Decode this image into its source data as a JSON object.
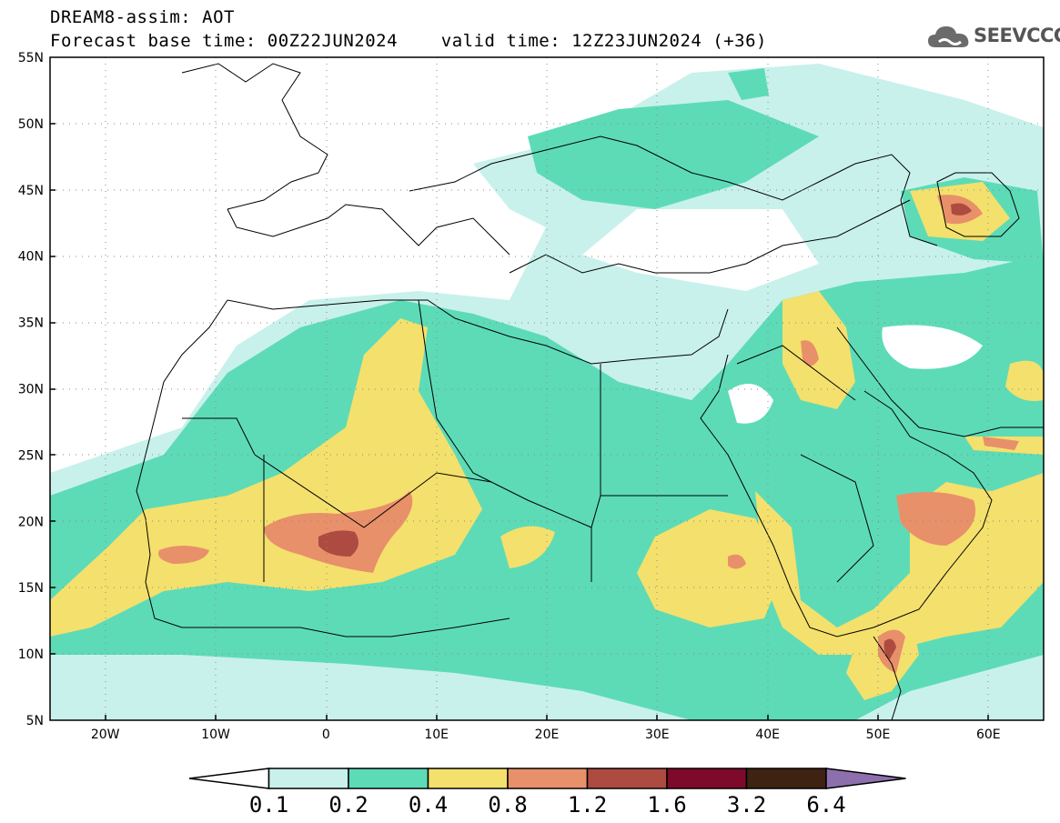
{
  "title": {
    "line1": "DREAM8-assim: AOT",
    "line2": "Forecast base time: 00Z22JUN2024    valid time: 12Z23JUN2024 (+36)"
  },
  "logo": {
    "text": "SEEVCCC",
    "icon": "cloud-icon"
  },
  "map": {
    "lon_range": [
      -25,
      65
    ],
    "lat_range": [
      5,
      55
    ],
    "lon_ticks": [
      "20W",
      "10W",
      "0",
      "10E",
      "20E",
      "30E",
      "40E",
      "50E",
      "60E"
    ],
    "lat_ticks": [
      "55N",
      "50N",
      "45N",
      "40N",
      "35N",
      "30N",
      "25N",
      "20N",
      "15N",
      "10N",
      "5N"
    ],
    "grid": "dotted"
  },
  "colorbar": {
    "labels": [
      "0.1",
      "0.2",
      "0.4",
      "0.8",
      "1.2",
      "1.6",
      "3.2",
      "6.4"
    ],
    "colors": [
      "#ffffff",
      "#c8f1eb",
      "#5ddbb7",
      "#f4e06c",
      "#e8906a",
      "#ad4b41",
      "#7d0a2b",
      "#3e2313",
      "#8e6fad"
    ]
  }
}
